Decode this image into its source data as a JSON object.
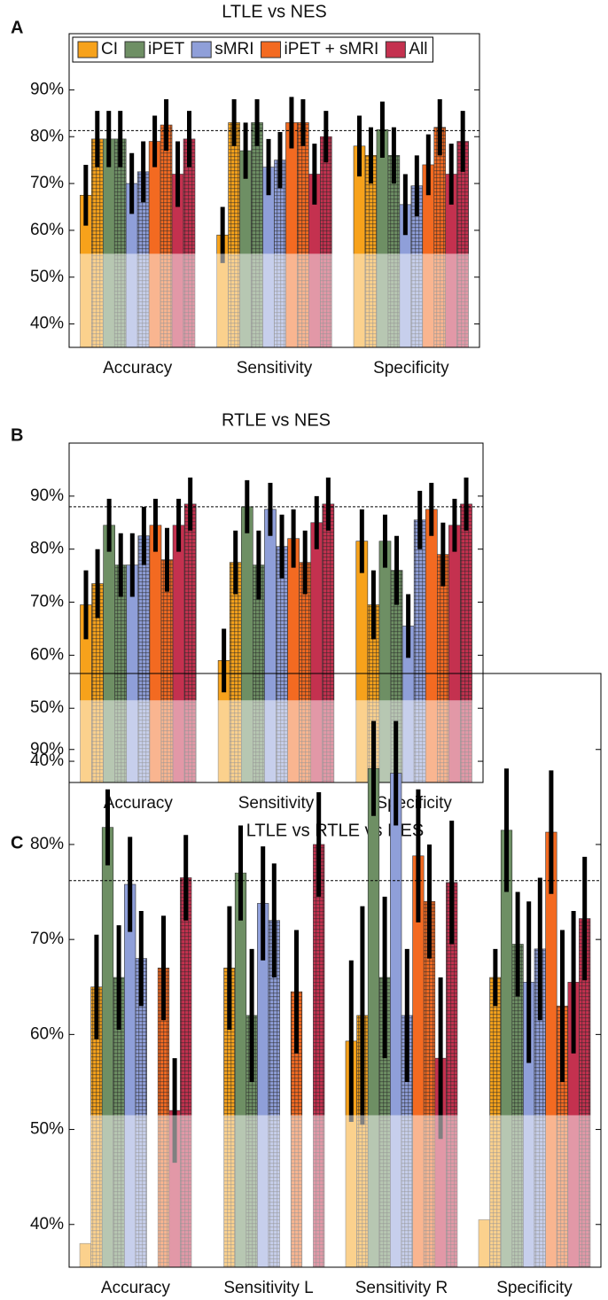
{
  "chart_data": [
    {
      "type": "bar",
      "letter": "A",
      "title": "LTLE vs NES",
      "categories": [
        "Accuracy",
        "Sensitivity",
        "Specificity"
      ],
      "series": [
        {
          "name": "CI",
          "color": "#f7a21b",
          "values": [
            67.5,
            59,
            78
          ],
          "errors": [
            6.5,
            6,
            6.5
          ],
          "hatched_values": [
            79.5,
            83,
            76
          ],
          "hatched_errors": [
            6,
            5,
            6
          ]
        },
        {
          "name": "iPET",
          "color": "#6e8f64",
          "values": [
            79.5,
            77,
            81.5
          ],
          "errors": [
            6,
            6,
            6
          ],
          "hatched_values": [
            79.5,
            83,
            76
          ],
          "hatched_errors": [
            6,
            5,
            6
          ]
        },
        {
          "name": "sMRI",
          "color": "#8f9fd9",
          "values": [
            70,
            73.5,
            65.5
          ],
          "errors": [
            6.5,
            6,
            6.5
          ],
          "hatched_values": [
            72.5,
            75,
            69.5
          ],
          "hatched_errors": [
            6.5,
            6,
            6.5
          ]
        },
        {
          "name": "iPET + sMRI",
          "color": "#f36a21",
          "values": [
            79,
            83,
            74
          ],
          "errors": [
            5.5,
            5.5,
            6.5
          ],
          "hatched_values": [
            82.5,
            83,
            82
          ],
          "hatched_errors": [
            5.5,
            5,
            6
          ]
        },
        {
          "name": "All",
          "color": "#c4314f",
          "values": [
            72,
            72,
            72
          ],
          "errors": [
            7,
            6.5,
            6.5
          ],
          "hatched_values": [
            79.5,
            80,
            79
          ],
          "hatched_errors": [
            6,
            5.5,
            6.5
          ]
        }
      ],
      "ylim": [
        35,
        102
      ],
      "yticks": [
        {
          "value": 40,
          "label": "40%"
        },
        {
          "value": 50,
          "label": "50%"
        },
        {
          "value": 60,
          "label": "60%"
        },
        {
          "value": 70,
          "label": "70%"
        },
        {
          "value": 80,
          "label": "80%"
        },
        {
          "value": 90,
          "label": "90%"
        }
      ],
      "chance_level": 55,
      "reference_line": 81.3,
      "legend": "top"
    },
    {
      "type": "bar",
      "letter": "B",
      "title": "RTLE vs NES",
      "categories": [
        "Accuracy",
        "Sensitivity",
        "Specificity"
      ],
      "series": [
        {
          "color": "#f7a21b",
          "values": [
            69.5,
            59,
            81.5
          ],
          "errors": [
            6.5,
            6,
            6
          ],
          "hatched_values": [
            73.5,
            77.5,
            69.5
          ],
          "hatched_errors": [
            6.5,
            6,
            6.5
          ]
        },
        {
          "color": "#6e8f64",
          "values": [
            84.5,
            88,
            81.5
          ],
          "errors": [
            5,
            5,
            5
          ],
          "hatched_values": [
            77,
            77,
            76
          ],
          "hatched_errors": [
            6,
            6.5,
            6.5
          ]
        },
        {
          "color": "#8f9fd9",
          "values": [
            77,
            87.5,
            65.5
          ],
          "errors": [
            6,
            5,
            6
          ],
          "hatched_values": [
            82.5,
            80.5,
            85.5
          ],
          "hatched_errors": [
            5.5,
            6,
            5.5
          ]
        },
        {
          "color": "#f36a21",
          "values": [
            84.5,
            82,
            87.5
          ],
          "errors": [
            5,
            5.5,
            5
          ],
          "hatched_values": [
            78,
            77.5,
            79
          ],
          "hatched_errors": [
            6,
            6,
            6
          ]
        },
        {
          "color": "#c4314f",
          "values": [
            84.5,
            85,
            84.5
          ],
          "errors": [
            5,
            5,
            5
          ],
          "hatched_values": [
            88.5,
            88.5,
            88.5
          ],
          "hatched_errors": [
            5,
            5,
            5
          ]
        }
      ],
      "ylim": [
        36,
        100
      ],
      "yticks": [
        {
          "value": 40,
          "label": "40%"
        },
        {
          "value": 50,
          "label": "50%"
        },
        {
          "value": 60,
          "label": "60%"
        },
        {
          "value": 70,
          "label": "70%"
        },
        {
          "value": 80,
          "label": "80%"
        },
        {
          "value": 90,
          "label": "90%"
        }
      ],
      "chance_level": 51.5,
      "reference_line": 88
    },
    {
      "type": "bar",
      "letter": "C",
      "title": "LTLE vs RTLE vs NES",
      "categories": [
        "Accuracy",
        "Sensitivity L",
        "Sensitivity R",
        "Specificity"
      ],
      "series": [
        {
          "color": "#f7a21b",
          "values": [
            38,
            null,
            59.3,
            40.5
          ],
          "errors": [
            null,
            null,
            8.5,
            null
          ],
          "hatched_values": [
            65,
            67,
            62,
            66
          ],
          "hatched_errors": [
            5.5,
            6.5,
            11.5,
            3
          ]
        },
        {
          "color": "#6e8f64",
          "values": [
            81.8,
            77,
            88,
            81.5
          ],
          "errors": [
            4,
            5,
            5,
            6.5
          ],
          "hatched_values": [
            66,
            62,
            66,
            69.5
          ],
          "hatched_errors": [
            5.5,
            7,
            8.5,
            5.5
          ]
        },
        {
          "color": "#8f9fd9",
          "values": [
            75.8,
            73.8,
            87.5,
            65.5
          ],
          "errors": [
            5,
            6,
            5.5,
            8.5
          ],
          "hatched_values": [
            68,
            72,
            62,
            69
          ],
          "hatched_errors": [
            5,
            6,
            7,
            7.5
          ]
        },
        {
          "color": "#f36a21",
          "values": [
            null,
            null,
            78.8,
            81.3
          ],
          "errors": [
            null,
            null,
            7,
            6.5
          ],
          "hatched_values": [
            67,
            64.5,
            74,
            63
          ],
          "hatched_errors": [
            5.5,
            6.5,
            6,
            8
          ]
        },
        {
          "color": "#c4314f",
          "values": [
            52,
            null,
            57.5,
            65.5
          ],
          "errors": [
            5.5,
            null,
            8.5,
            7.5
          ],
          "hatched_values": [
            76.5,
            80,
            76,
            72.2
          ],
          "hatched_errors": [
            4.5,
            5.5,
            6.5,
            6.5
          ]
        }
      ],
      "ylim": [
        35.5,
        98
      ],
      "yticks": [
        {
          "value": 40,
          "label": "40%"
        },
        {
          "value": 50,
          "label": "50%"
        },
        {
          "value": 60,
          "label": "60%"
        },
        {
          "value": 70,
          "label": "70%"
        },
        {
          "value": 80,
          "label": "80%"
        },
        {
          "value": 90,
          "label": "90%"
        }
      ],
      "chance_level": 51.5,
      "reference_line": 76.2
    }
  ]
}
